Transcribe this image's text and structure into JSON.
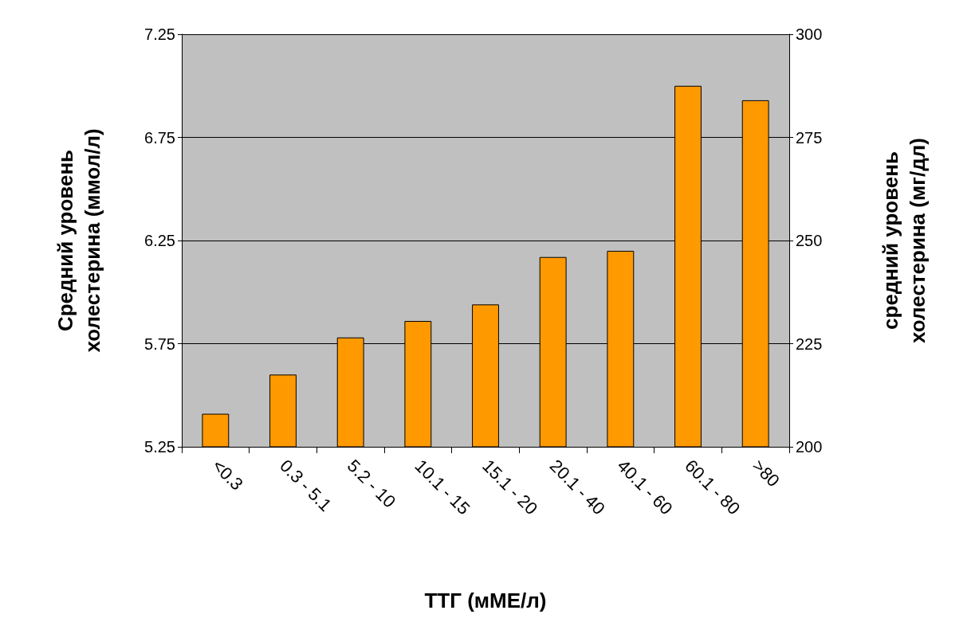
{
  "chart_data": {
    "type": "bar",
    "xlabel": "ТТГ (мМЕ/л)",
    "ylabel": "Средний уровень\nхолестерина (ммол/л)",
    "y2label": "средний уровень\nхолестерина (мг/дл)",
    "categories": [
      "<0.3",
      "0.3 - 5.1",
      "5.2 - 10",
      "10.1 - 15",
      "15.1 - 20",
      "20.1 - 40",
      "40.1 - 60",
      "60.1 - 80",
      ">80"
    ],
    "values": [
      5.41,
      5.6,
      5.78,
      5.86,
      5.94,
      6.17,
      6.2,
      7.0,
      6.93
    ],
    "color": "#ff9900",
    "ylim": [
      5.25,
      7.25
    ],
    "yticks": [
      5.25,
      5.75,
      6.25,
      6.75,
      7.25
    ],
    "y2lim": [
      200,
      300
    ],
    "y2ticks": [
      200,
      225,
      250,
      275,
      300
    ],
    "grid": "y"
  }
}
